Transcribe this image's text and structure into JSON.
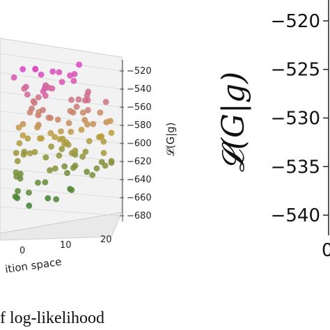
{
  "chart_data": [
    {
      "type": "scatter",
      "projection": "3d",
      "cropped": true,
      "zlabel": "𝓛(G|g)",
      "zticks": [
        "−520",
        "−540",
        "−560",
        "−580",
        "−600",
        "−620",
        "−640",
        "−660",
        "−680"
      ],
      "zlim": [
        -680,
        -520
      ],
      "xticks": [
        "0",
        "10",
        "20"
      ],
      "xlabel_fragment": "ition space",
      "color_scale": {
        "low": "#2e7d32",
        "mid": "#c0a040",
        "high": "#e040d0"
      },
      "points_z_sample": [
        -522,
        -528,
        -531,
        -536,
        -541,
        -545,
        -549,
        -553,
        -556,
        -560,
        -563,
        -566,
        -569,
        -572,
        -575,
        -578,
        -581,
        -584,
        -587,
        -590,
        -593,
        -596,
        -599,
        -602,
        -605,
        -608,
        -611,
        -614,
        -617,
        -620,
        -623,
        -626,
        -629,
        -632,
        -635,
        -640,
        -645,
        -652,
        -660,
        -668
      ]
    },
    {
      "type": "line",
      "cropped": true,
      "ylabel": "𝓛(G|g)",
      "yticks": [
        "−520",
        "−525",
        "−530",
        "−535",
        "−540"
      ],
      "ylim": [
        -541,
        -519
      ],
      "xtick_fragment": "0"
    }
  ],
  "caption_fragment": "f log-likelihood"
}
